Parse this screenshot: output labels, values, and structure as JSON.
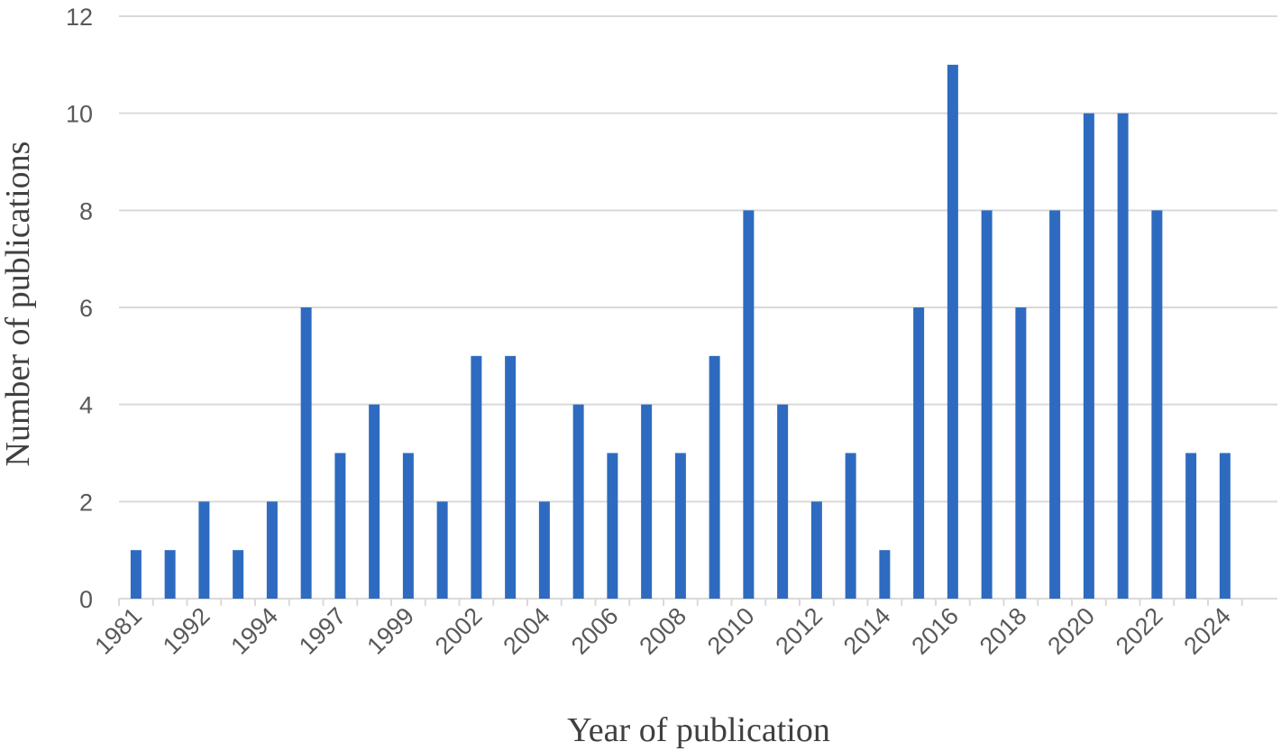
{
  "chart_data": {
    "type": "bar",
    "title": "",
    "xlabel": "Year of publication",
    "ylabel": "Number of publications",
    "ylim": [
      0,
      12
    ],
    "yticks": [
      0,
      2,
      4,
      6,
      8,
      10,
      12
    ],
    "grid": true,
    "legend": "none",
    "color": "#2e6bc0",
    "x_tick_labels": [
      "1981",
      "1992",
      "1994",
      "1997",
      "1999",
      "2002",
      "2004",
      "2006",
      "2008",
      "2010",
      "2012",
      "2014",
      "2016",
      "2018",
      "2020",
      "2022",
      "2024"
    ],
    "values": [
      1,
      1,
      2,
      1,
      2,
      6,
      3,
      4,
      3,
      2,
      5,
      5,
      2,
      4,
      3,
      4,
      3,
      5,
      8,
      4,
      2,
      3,
      1,
      6,
      11,
      8,
      6,
      8,
      10,
      10,
      8,
      3,
      3
    ]
  }
}
